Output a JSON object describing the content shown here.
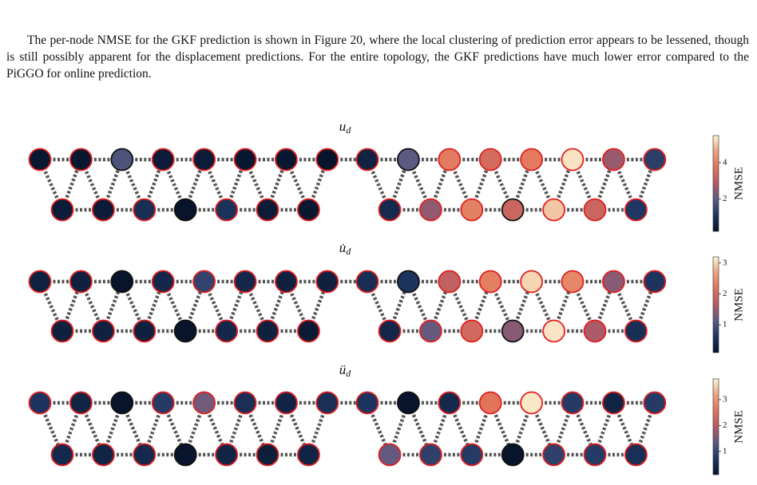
{
  "paragraph": "The per-node NMSE for the GKF prediction is shown in Figure 20, where the local clustering of prediction error appears to be lessened, though is still possibly apparent for the displacement predictions. For the entire topology, the GKF predictions have much lower error compared to the PiGGO for online prediction.",
  "figure": {
    "colormap": [
      "#07142b",
      "#1d3560",
      "#5a5a82",
      "#b35a66",
      "#e0725a",
      "#eba37c",
      "#fdf4d6"
    ],
    "panels": [
      {
        "title": "u",
        "title_sub": "d",
        "colorbar_label": "NMSE",
        "clim": [
          0.2,
          5.5
        ],
        "cticks": [
          2,
          4
        ],
        "top_values": [
          0.3,
          0.3,
          1.8,
          0.4,
          0.4,
          0.3,
          0.3,
          0.1,
          0.6,
          2.0,
          3.9,
          3.5,
          3.9,
          5.3,
          2.6,
          1.3
        ],
        "bottom_values": [
          0.4,
          0.4,
          0.9,
          0.2,
          1.0,
          0.4,
          0.3,
          0.8,
          2.5,
          4.0,
          3.3,
          5.0,
          3.3,
          1.1
        ],
        "black_edge_top": [
          2,
          9
        ],
        "black_edge_bottom": [
          3,
          10
        ]
      },
      {
        "title": "u̇",
        "title_sub": "d",
        "colorbar_label": "NMSE",
        "clim": [
          0.1,
          3.2
        ],
        "cticks": [
          1,
          2,
          3
        ],
        "top_values": [
          0.3,
          0.3,
          0.1,
          0.4,
          0.8,
          0.4,
          0.3,
          0.3,
          0.5,
          0.6,
          1.8,
          2.3,
          3.0,
          2.4,
          1.4,
          0.6
        ],
        "bottom_values": [
          0.3,
          0.3,
          0.3,
          0.1,
          0.4,
          0.3,
          0.2,
          0.4,
          1.2,
          2.0,
          1.4,
          3.1,
          1.6,
          0.5
        ],
        "black_edge_top": [
          2,
          9
        ],
        "black_edge_bottom": [
          3,
          10
        ]
      },
      {
        "title": "ü",
        "title_sub": "d",
        "colorbar_label": "NMSE",
        "clim": [
          0.1,
          3.8
        ],
        "cticks": [
          1,
          2,
          3
        ],
        "top_values": [
          0.7,
          0.4,
          0.1,
          0.8,
          1.5,
          0.6,
          0.4,
          0.6,
          0.7,
          0.1,
          0.5,
          2.6,
          3.7,
          0.8,
          0.4,
          0.8
        ],
        "bottom_values": [
          0.5,
          0.4,
          0.5,
          0.1,
          0.4,
          0.3,
          0.4,
          1.4,
          0.9,
          0.8,
          0.1,
          0.9,
          0.8,
          0.6
        ],
        "black_edge_top": [
          2,
          9
        ],
        "black_edge_bottom": [
          3,
          10
        ]
      }
    ]
  }
}
